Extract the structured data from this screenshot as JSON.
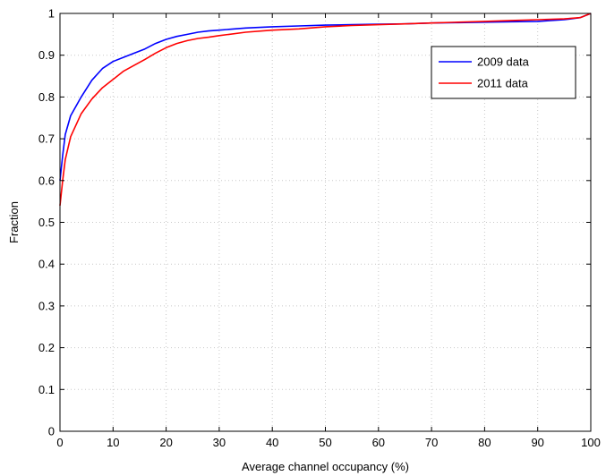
{
  "chart_data": {
    "type": "line",
    "title": "",
    "xlabel": "Average channel occupancy (%)",
    "ylabel": "Fraction",
    "xlim": [
      0,
      100
    ],
    "ylim": [
      0,
      1
    ],
    "xticks": [
      0,
      10,
      20,
      30,
      40,
      50,
      60,
      70,
      80,
      90,
      100
    ],
    "xtick_labels": [
      "0",
      "10",
      "20",
      "30",
      "40",
      "50",
      "60",
      "70",
      "80",
      "90",
      "100"
    ],
    "yticks": [
      0,
      0.1,
      0.2,
      0.3,
      0.4,
      0.5,
      0.6,
      0.7,
      0.8,
      0.9,
      1
    ],
    "ytick_labels": [
      "0",
      "0.1",
      "0.2",
      "0.3",
      "0.4",
      "0.5",
      "0.6",
      "0.7",
      "0.8",
      "0.9",
      "1"
    ],
    "grid": true,
    "legend_position": "top-right",
    "series": [
      {
        "name": "2009 data",
        "color": "#0000ff",
        "x": [
          0,
          0.5,
          1,
          2,
          4,
          6,
          8,
          10,
          12,
          14,
          16,
          18,
          20,
          22,
          24,
          26,
          28,
          30,
          35,
          40,
          45,
          50,
          55,
          60,
          65,
          70,
          75,
          80,
          85,
          90,
          95,
          98,
          100
        ],
        "y": [
          0.6,
          0.66,
          0.71,
          0.755,
          0.8,
          0.84,
          0.868,
          0.885,
          0.895,
          0.905,
          0.915,
          0.928,
          0.938,
          0.945,
          0.95,
          0.955,
          0.958,
          0.96,
          0.965,
          0.968,
          0.97,
          0.972,
          0.973,
          0.974,
          0.975,
          0.977,
          0.978,
          0.979,
          0.98,
          0.981,
          0.985,
          0.99,
          1.0
        ]
      },
      {
        "name": "2011 data",
        "color": "#ff0000",
        "x": [
          0,
          0.5,
          1,
          2,
          4,
          6,
          8,
          10,
          12,
          14,
          16,
          18,
          20,
          22,
          24,
          26,
          28,
          30,
          35,
          40,
          45,
          50,
          55,
          60,
          65,
          70,
          75,
          80,
          85,
          90,
          95,
          98,
          100
        ],
        "y": [
          0.54,
          0.6,
          0.65,
          0.705,
          0.76,
          0.795,
          0.822,
          0.842,
          0.862,
          0.876,
          0.89,
          0.905,
          0.918,
          0.928,
          0.935,
          0.94,
          0.943,
          0.947,
          0.955,
          0.96,
          0.963,
          0.968,
          0.971,
          0.973,
          0.975,
          0.977,
          0.979,
          0.981,
          0.983,
          0.985,
          0.987,
          0.99,
          1.0
        ]
      }
    ]
  }
}
